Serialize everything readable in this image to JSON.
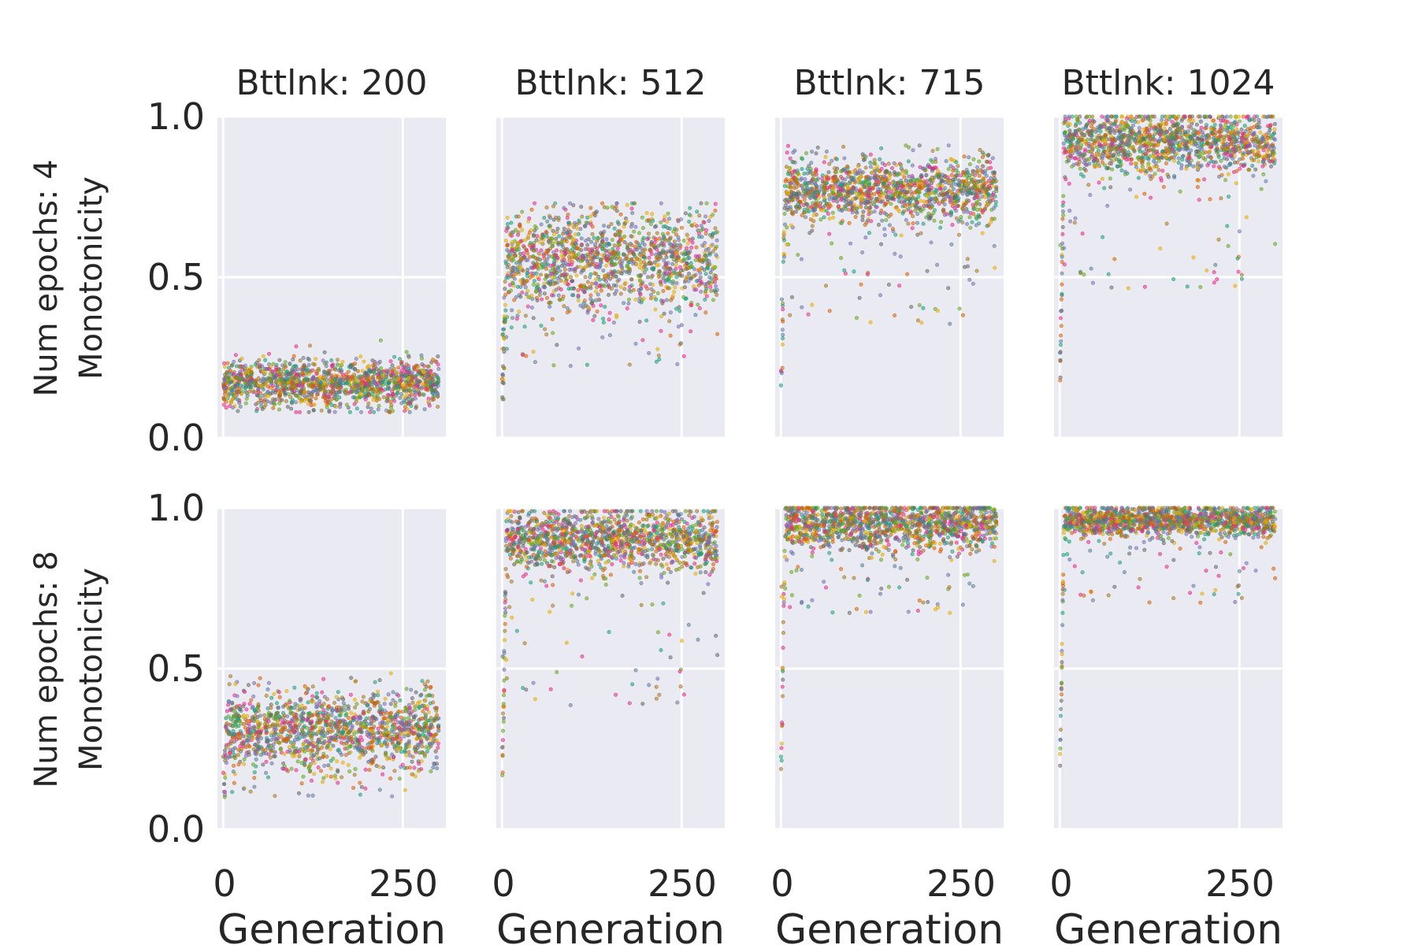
{
  "figure": {
    "row_labels": [
      "Num epochs: 4",
      "Num epochs: 8"
    ],
    "y_label": "Monotonicity",
    "x_label": "Generation",
    "col_titles": [
      "Bttlnk: 200",
      "Bttlnk: 512",
      "Bttlnk: 715",
      "Bttlnk: 1024"
    ],
    "y_ticks": [
      "0.0",
      "0.5",
      "1.0"
    ],
    "x_ticks": [
      "0",
      "250"
    ]
  },
  "colors": {
    "background": "#ffffff",
    "panel_bg": "#eaeaf2",
    "grid": "#ffffff",
    "text": "#262626",
    "series_palette": [
      "#1b9e77",
      "#d95f02",
      "#7570b3",
      "#e7298a",
      "#66a61e",
      "#e6ab02",
      "#a6761d",
      "#666666",
      "#5b7c99"
    ]
  },
  "chart_data": [
    {
      "type": "scatter",
      "row": 0,
      "col": 0,
      "title": "Bttlnk: 200",
      "xlabel": "",
      "ylabel": "Monotonicity",
      "xlim": [
        -8,
        310
      ],
      "ylim": [
        0,
        1
      ],
      "grid": true,
      "series_count": 9,
      "x_range": [
        0,
        300
      ],
      "summary": {
        "start_mean": 0.16,
        "plateau_mean": 0.17,
        "spread": 0.035,
        "outliers_low": 0.08,
        "outliers_high": 0.33
      }
    },
    {
      "type": "scatter",
      "row": 0,
      "col": 1,
      "title": "Bttlnk: 512",
      "xlabel": "",
      "ylabel": "",
      "xlim": [
        -8,
        310
      ],
      "ylim": [
        0,
        1
      ],
      "grid": true,
      "series_count": 9,
      "x_range": [
        0,
        300
      ],
      "summary": {
        "start_mean": 0.12,
        "plateau_mean": 0.55,
        "spread": 0.08,
        "outliers_low": 0.22,
        "outliers_high": 0.73
      }
    },
    {
      "type": "scatter",
      "row": 0,
      "col": 2,
      "title": "Bttlnk: 715",
      "xlabel": "",
      "ylabel": "",
      "xlim": [
        -8,
        310
      ],
      "ylim": [
        0,
        1
      ],
      "grid": true,
      "series_count": 9,
      "x_range": [
        0,
        300
      ],
      "summary": {
        "start_mean": 0.12,
        "plateau_mean": 0.77,
        "spread": 0.05,
        "outliers_low": 0.35,
        "outliers_high": 0.91
      }
    },
    {
      "type": "scatter",
      "row": 0,
      "col": 3,
      "title": "Bttlnk: 1024",
      "xlabel": "",
      "ylabel": "",
      "xlim": [
        -8,
        310
      ],
      "ylim": [
        0,
        1
      ],
      "grid": true,
      "series_count": 9,
      "x_range": [
        0,
        300
      ],
      "summary": {
        "start_mean": 0.14,
        "plateau_mean": 0.92,
        "spread": 0.05,
        "outliers_low": 0.46,
        "outliers_high": 1.0
      }
    },
    {
      "type": "scatter",
      "row": 1,
      "col": 0,
      "title": "",
      "xlabel": "Generation",
      "ylabel": "Monotonicity",
      "xlim": [
        -8,
        310
      ],
      "ylim": [
        0,
        1
      ],
      "grid": true,
      "series_count": 9,
      "x_range": [
        0,
        300
      ],
      "summary": {
        "start_mean": 0.13,
        "plateau_mean": 0.31,
        "spread": 0.06,
        "outliers_low": 0.1,
        "outliers_high": 0.55
      }
    },
    {
      "type": "scatter",
      "row": 1,
      "col": 1,
      "title": "",
      "xlabel": "Generation",
      "ylabel": "",
      "xlim": [
        -8,
        310
      ],
      "ylim": [
        0,
        1
      ],
      "grid": true,
      "series_count": 9,
      "x_range": [
        0,
        300
      ],
      "summary": {
        "start_mean": 0.13,
        "plateau_mean": 0.9,
        "spread": 0.05,
        "outliers_low": 0.38,
        "outliers_high": 0.99
      }
    },
    {
      "type": "scatter",
      "row": 1,
      "col": 2,
      "title": "",
      "xlabel": "Generation",
      "ylabel": "",
      "xlim": [
        -8,
        310
      ],
      "ylim": [
        0,
        1
      ],
      "grid": true,
      "series_count": 9,
      "x_range": [
        0,
        300
      ],
      "summary": {
        "start_mean": 0.15,
        "plateau_mean": 0.95,
        "spread": 0.04,
        "outliers_low": 0.67,
        "outliers_high": 1.0
      }
    },
    {
      "type": "scatter",
      "row": 1,
      "col": 3,
      "title": "",
      "xlabel": "Generation",
      "ylabel": "",
      "xlim": [
        -8,
        310
      ],
      "ylim": [
        0,
        1
      ],
      "grid": true,
      "series_count": 9,
      "x_range": [
        0,
        300
      ],
      "summary": {
        "start_mean": 0.15,
        "plateau_mean": 0.96,
        "spread": 0.025,
        "outliers_low": 0.7,
        "outliers_high": 1.0
      }
    }
  ]
}
